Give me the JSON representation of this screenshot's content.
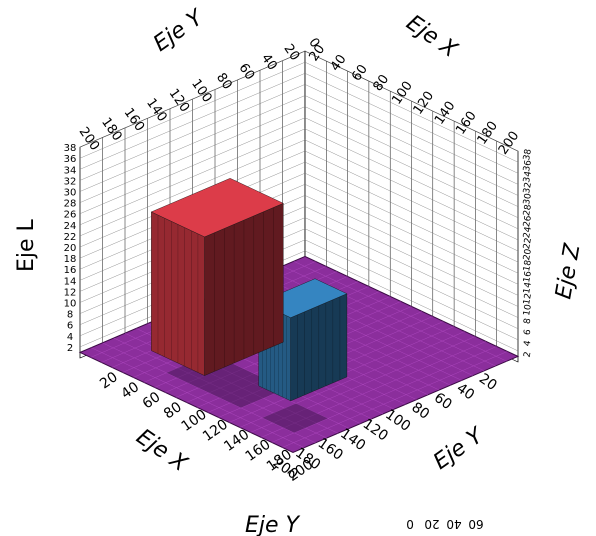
{
  "chart_data": {
    "type": "surface3d",
    "title": "",
    "axis_titles": {
      "x_front": "Eje X",
      "y_front": "Eje Y",
      "x_back": "Eje X",
      "y_back": "Eje Y",
      "z_left": "Eje L",
      "z_right": "Eje Z",
      "y_bottom_mirror": "Eje Y"
    },
    "x_range": [
      0,
      200
    ],
    "y_range": [
      0,
      200
    ],
    "z_range": [
      0,
      38
    ],
    "x_ticks": [
      20,
      40,
      60,
      80,
      100,
      120,
      140,
      160,
      180,
      200
    ],
    "y_ticks": [
      20,
      40,
      60,
      80,
      100,
      120,
      140,
      160,
      180,
      200
    ],
    "x_back_ticks": [
      0,
      20,
      40,
      60,
      80,
      100,
      120,
      140,
      160,
      180,
      200
    ],
    "y_back_ticks": [
      20,
      40,
      60,
      80,
      100,
      120,
      140,
      160,
      180,
      200
    ],
    "z_ticks": [
      2,
      4,
      6,
      8,
      10,
      12,
      14,
      16,
      18,
      20,
      22,
      24,
      26,
      28,
      30,
      32,
      34,
      36,
      38
    ],
    "bottom_mirror_ticks": [
      0,
      20,
      40,
      60
    ],
    "base_level": 1,
    "colormap": "magenta-blue-red",
    "peaks": [
      {
        "name": "blue block",
        "x_range": [
          100,
          150
        ],
        "y_range": [
          115,
          145
        ],
        "z": 16,
        "color": "#2a6a9a"
      },
      {
        "name": "red block",
        "x_range": [
          95,
          165
        ],
        "y_range": [
          30,
          80
        ],
        "z": 26,
        "color": "#b0303a"
      }
    ],
    "grid": true,
    "legend": "none"
  }
}
